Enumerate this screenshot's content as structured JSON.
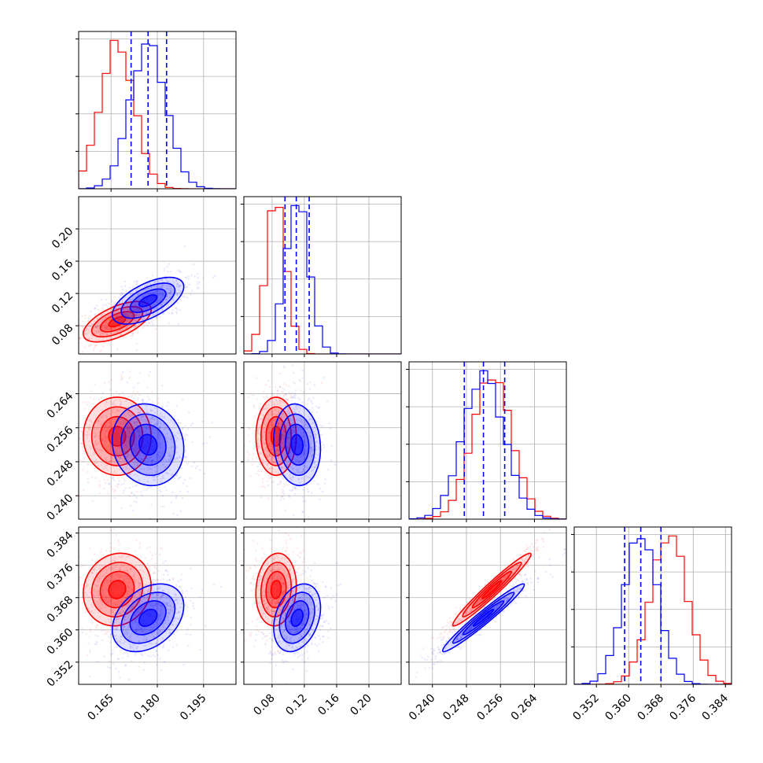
{
  "chart_data": {
    "type": "corner",
    "grid": true,
    "colors": {
      "red": "#ff0000",
      "blue": "#0000ff"
    },
    "series": [
      {
        "color": "red",
        "centers": {
          "p0": 0.167,
          "p1": 0.085,
          "p2": 0.254,
          "p3": 0.37
        },
        "spreads": {
          "p0": 0.0055,
          "p1": 0.0125,
          "p2": 0.0046,
          "p3": 0.0045
        }
      },
      {
        "color": "blue",
        "centers": {
          "p0": 0.177,
          "p1": 0.111,
          "p2": 0.252,
          "p3": 0.363
        },
        "spreads": {
          "p0": 0.0058,
          "p1": 0.0145,
          "p2": 0.0048,
          "p3": 0.0042
        }
      }
    ],
    "correlations": [
      {
        "params": [
          "p0",
          "p1"
        ],
        "red": 0.6,
        "blue": 0.6
      },
      {
        "params": [
          "p0",
          "p2"
        ],
        "red": 0.0,
        "blue": -0.1
      },
      {
        "params": [
          "p1",
          "p2"
        ],
        "red": 0.0,
        "blue": -0.1
      },
      {
        "params": [
          "p0",
          "p3"
        ],
        "red": 0.1,
        "blue": 0.35
      },
      {
        "params": [
          "p1",
          "p3"
        ],
        "red": 0.1,
        "blue": 0.3
      },
      {
        "params": [
          "p2",
          "p3"
        ],
        "red": 0.97,
        "blue": 0.97
      }
    ],
    "quantile_lines": {
      "color": "blue",
      "p0": [
        0.1715,
        0.177,
        0.183
      ],
      "p1": [
        0.096,
        0.11,
        0.126
      ],
      "p2": [
        0.2475,
        0.252,
        0.257
      ],
      "p3": [
        0.359,
        0.363,
        0.368
      ]
    },
    "axes": {
      "p0": {
        "range": [
          0.1545,
          0.2055
        ],
        "ticks": [
          "0.165",
          "0.180",
          "0.195"
        ],
        "tick_values": [
          0.165,
          0.18,
          0.195
        ]
      },
      "p1": {
        "range": [
          0.045,
          0.24
        ],
        "ticks": [
          "0.08",
          "0.12",
          "0.16",
          "0.20"
        ],
        "tick_values": [
          0.08,
          0.12,
          0.16,
          0.2
        ]
      },
      "p2": {
        "range": [
          0.2345,
          0.2715
        ],
        "ticks": [
          "0.240",
          "0.248",
          "0.256",
          "0.264"
        ],
        "tick_values": [
          0.24,
          0.248,
          0.256,
          0.264
        ]
      },
      "p3": {
        "range": [
          0.3465,
          0.3855
        ],
        "ticks": [
          "0.352",
          "0.360",
          "0.368",
          "0.376",
          "0.384"
        ],
        "tick_values": [
          0.352,
          0.36,
          0.368,
          0.376,
          0.384
        ]
      }
    },
    "panels": [
      {
        "row": 0,
        "col": 0,
        "kind": "hist",
        "param": "p0"
      },
      {
        "row": 1,
        "col": 0,
        "kind": "scatter",
        "x": "p0",
        "y": "p1"
      },
      {
        "row": 1,
        "col": 1,
        "kind": "hist",
        "param": "p1"
      },
      {
        "row": 2,
        "col": 0,
        "kind": "scatter",
        "x": "p0",
        "y": "p2"
      },
      {
        "row": 2,
        "col": 1,
        "kind": "scatter",
        "x": "p1",
        "y": "p2"
      },
      {
        "row": 2,
        "col": 2,
        "kind": "hist",
        "param": "p2"
      },
      {
        "row": 3,
        "col": 0,
        "kind": "scatter",
        "x": "p0",
        "y": "p3"
      },
      {
        "row": 3,
        "col": 1,
        "kind": "scatter",
        "x": "p1",
        "y": "p3"
      },
      {
        "row": 3,
        "col": 2,
        "kind": "scatter",
        "x": "p2",
        "y": "p3"
      },
      {
        "row": 3,
        "col": 3,
        "kind": "hist",
        "param": "p3"
      }
    ]
  }
}
